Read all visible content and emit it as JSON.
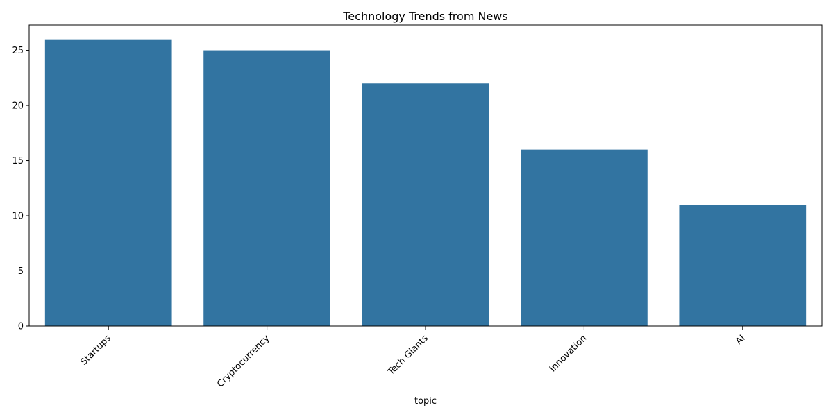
{
  "chart_data": {
    "type": "bar",
    "title": "Technology Trends from News",
    "xlabel": "topic",
    "ylabel": "",
    "categories": [
      "Startups",
      "Cryptocurrency",
      "Tech Giants",
      "Innovation",
      "AI"
    ],
    "values": [
      26,
      25,
      22,
      16,
      11
    ],
    "ylim": [
      0,
      27.3
    ],
    "yticks": [
      0,
      5,
      10,
      15,
      20,
      25
    ],
    "bar_color": "#3274a1",
    "grid": false,
    "x_tick_rotation_deg": 45
  }
}
